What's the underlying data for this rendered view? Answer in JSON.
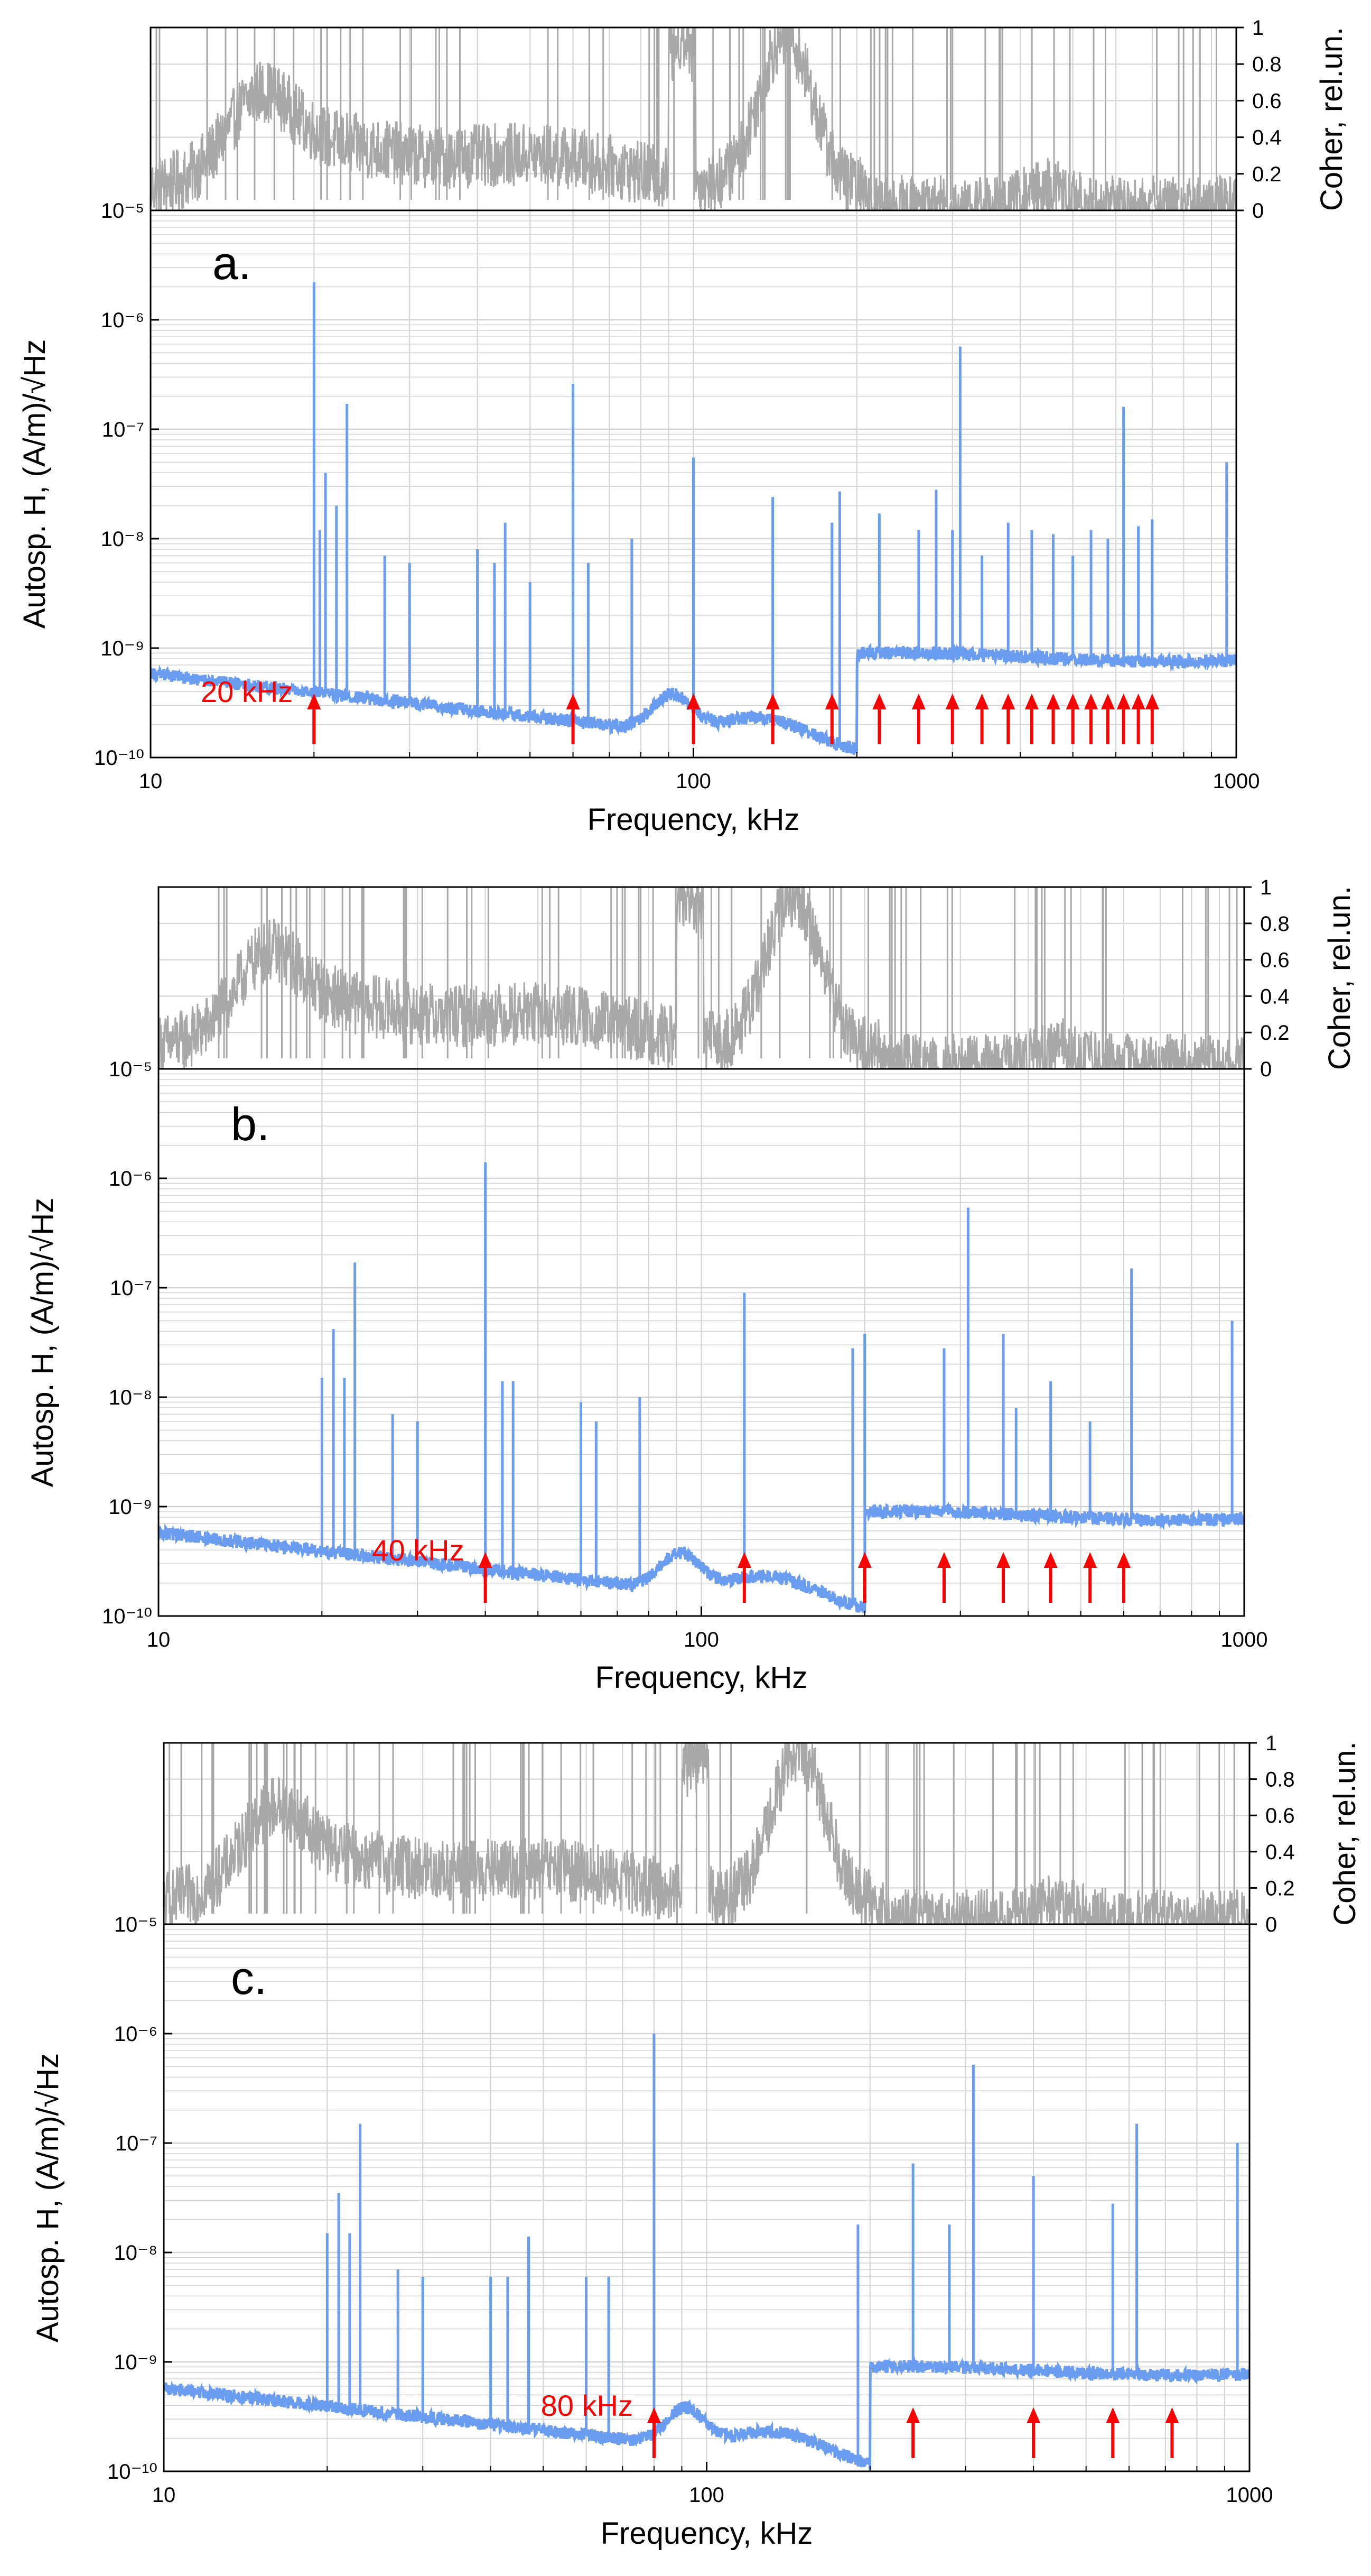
{
  "colors": {
    "spectrum": "#6a9cf0",
    "coherence": "#a8a8a8",
    "harmonic_arrow": "#ff0000",
    "grid": "#d2d2d2",
    "axis": "#000000"
  },
  "chart_data": [
    {
      "type": "line",
      "panel_label": "a.",
      "xlabel": "Frequency, kHz",
      "ylabel": "Autosp. H, (A/m)/√Hz",
      "coher_label": "Coher, rel.un.",
      "xlim": [
        10,
        1000
      ],
      "ylim": [
        1e-10,
        1e-05
      ],
      "x_scale": "log",
      "y_scale": "log",
      "x_ticks": [
        10,
        100,
        1000
      ],
      "x_tick_labels": [
        "10",
        "100",
        "1000"
      ],
      "y_tick_labels": [
        "10⁻¹⁰",
        "10⁻⁹",
        "10⁻⁸",
        "10⁻⁷",
        "10⁻⁶",
        "10⁻⁵"
      ],
      "coher_ticks": [
        0,
        0.2,
        0.4,
        0.6,
        0.8,
        1
      ],
      "coher_tick_labels": [
        "0",
        "0.2",
        "0.4",
        "0.6",
        "0.8",
        "1"
      ],
      "fundamental_khz": 20,
      "harmonic_label": "20 kHz",
      "harmonics_khz": [
        20,
        60,
        100,
        140,
        180,
        220,
        260,
        300,
        340,
        380,
        420,
        460,
        500,
        540,
        580,
        620,
        660,
        700
      ],
      "peaks": [
        {
          "f": 20,
          "v": 2.2e-06
        },
        {
          "f": 20.5,
          "v": 1.2e-08
        },
        {
          "f": 21,
          "v": 4e-08
        },
        {
          "f": 22,
          "v": 2e-08
        },
        {
          "f": 23,
          "v": 1.7e-07
        },
        {
          "f": 27,
          "v": 7e-09
        },
        {
          "f": 30,
          "v": 6e-09
        },
        {
          "f": 40,
          "v": 8e-09
        },
        {
          "f": 43,
          "v": 6e-09
        },
        {
          "f": 45,
          "v": 1.4e-08
        },
        {
          "f": 50,
          "v": 4e-09
        },
        {
          "f": 60,
          "v": 2.6e-07
        },
        {
          "f": 64,
          "v": 6e-09
        },
        {
          "f": 77,
          "v": 1e-08
        },
        {
          "f": 100,
          "v": 5.5e-08
        },
        {
          "f": 140,
          "v": 2.4e-08
        },
        {
          "f": 180,
          "v": 1.4e-08
        },
        {
          "f": 186,
          "v": 2.7e-08
        },
        {
          "f": 220,
          "v": 1.7e-08
        },
        {
          "f": 260,
          "v": 1.2e-08
        },
        {
          "f": 280,
          "v": 2.8e-08
        },
        {
          "f": 300,
          "v": 1.2e-08
        },
        {
          "f": 310,
          "v": 5.7e-07
        },
        {
          "f": 340,
          "v": 7e-09
        },
        {
          "f": 380,
          "v": 1.4e-08
        },
        {
          "f": 420,
          "v": 1.2e-08
        },
        {
          "f": 460,
          "v": 1.1e-08
        },
        {
          "f": 500,
          "v": 7e-09
        },
        {
          "f": 540,
          "v": 1.2e-08
        },
        {
          "f": 580,
          "v": 1e-08
        },
        {
          "f": 620,
          "v": 1.6e-07
        },
        {
          "f": 660,
          "v": 1.3e-08
        },
        {
          "f": 700,
          "v": 1.5e-08
        },
        {
          "f": 960,
          "v": 5e-08
        }
      ]
    },
    {
      "type": "line",
      "panel_label": "b.",
      "xlabel": "Frequency, kHz",
      "ylabel": "Autosp. H, (A/m)/√Hz",
      "coher_label": "Coher, rel.un.",
      "xlim": [
        10,
        1000
      ],
      "ylim": [
        1e-10,
        1e-05
      ],
      "x_scale": "log",
      "y_scale": "log",
      "x_ticks": [
        10,
        100,
        1000
      ],
      "x_tick_labels": [
        "10",
        "100",
        "1000"
      ],
      "y_tick_labels": [
        "10⁻¹⁰",
        "10⁻⁹",
        "10⁻⁸",
        "10⁻⁷",
        "10⁻⁶",
        "10⁻⁵"
      ],
      "coher_ticks": [
        0,
        0.2,
        0.4,
        0.6,
        0.8,
        1
      ],
      "coher_tick_labels": [
        "0",
        "0.2",
        "0.4",
        "0.6",
        "0.8",
        "1"
      ],
      "fundamental_khz": 40,
      "harmonic_label": "40 kHz",
      "harmonics_khz": [
        40,
        120,
        200,
        280,
        360,
        440,
        520,
        600
      ],
      "peaks": [
        {
          "f": 20,
          "v": 1.5e-08
        },
        {
          "f": 21,
          "v": 4.2e-08
        },
        {
          "f": 22,
          "v": 1.5e-08
        },
        {
          "f": 23,
          "v": 1.7e-07
        },
        {
          "f": 27,
          "v": 7e-09
        },
        {
          "f": 30,
          "v": 6e-09
        },
        {
          "f": 40,
          "v": 1.4e-06
        },
        {
          "f": 43,
          "v": 1.4e-08
        },
        {
          "f": 45,
          "v": 1.4e-08
        },
        {
          "f": 60,
          "v": 9e-09
        },
        {
          "f": 64,
          "v": 6e-09
        },
        {
          "f": 77,
          "v": 1e-08
        },
        {
          "f": 120,
          "v": 9e-08
        },
        {
          "f": 190,
          "v": 2.8e-08
        },
        {
          "f": 200,
          "v": 3.8e-08
        },
        {
          "f": 280,
          "v": 2.8e-08
        },
        {
          "f": 310,
          "v": 5.4e-07
        },
        {
          "f": 360,
          "v": 3.8e-08
        },
        {
          "f": 380,
          "v": 8e-09
        },
        {
          "f": 440,
          "v": 1.4e-08
        },
        {
          "f": 520,
          "v": 6e-09
        },
        {
          "f": 620,
          "v": 1.5e-07
        },
        {
          "f": 950,
          "v": 5e-08
        }
      ]
    },
    {
      "type": "line",
      "panel_label": "c.",
      "xlabel": "Frequency, kHz",
      "ylabel": "Autosp. H, (A/m)/√Hz",
      "coher_label": "Coher, rel.un.",
      "xlim": [
        10,
        1000
      ],
      "ylim": [
        1e-10,
        1e-05
      ],
      "x_scale": "log",
      "y_scale": "log",
      "x_ticks": [
        10,
        100,
        1000
      ],
      "x_tick_labels": [
        "10",
        "100",
        "1000"
      ],
      "y_tick_labels": [
        "10⁻¹⁰",
        "10⁻⁹",
        "10⁻⁸",
        "10⁻⁷",
        "10⁻⁶",
        "10⁻⁵"
      ],
      "coher_ticks": [
        0,
        0.2,
        0.4,
        0.6,
        0.8,
        1
      ],
      "coher_tick_labels": [
        "0",
        "0.2",
        "0.4",
        "0.6",
        "0.8",
        "1"
      ],
      "fundamental_khz": 80,
      "harmonic_label": "80 kHz",
      "harmonics_khz": [
        80,
        240,
        400,
        560,
        720
      ],
      "peaks": [
        {
          "f": 20,
          "v": 1.5e-08
        },
        {
          "f": 21,
          "v": 3.5e-08
        },
        {
          "f": 22,
          "v": 1.5e-08
        },
        {
          "f": 23,
          "v": 1.5e-07
        },
        {
          "f": 27,
          "v": 7e-09
        },
        {
          "f": 30,
          "v": 6e-09
        },
        {
          "f": 40,
          "v": 6e-09
        },
        {
          "f": 43,
          "v": 6e-09
        },
        {
          "f": 47,
          "v": 1.4e-08
        },
        {
          "f": 60,
          "v": 6e-09
        },
        {
          "f": 66,
          "v": 6e-09
        },
        {
          "f": 80,
          "v": 1e-06
        },
        {
          "f": 190,
          "v": 1.8e-08
        },
        {
          "f": 240,
          "v": 6.5e-08
        },
        {
          "f": 280,
          "v": 1.8e-08
        },
        {
          "f": 310,
          "v": 5.2e-07
        },
        {
          "f": 400,
          "v": 5e-08
        },
        {
          "f": 560,
          "v": 2.8e-08
        },
        {
          "f": 620,
          "v": 1.5e-07
        },
        {
          "f": 950,
          "v": 1e-07
        }
      ]
    }
  ]
}
